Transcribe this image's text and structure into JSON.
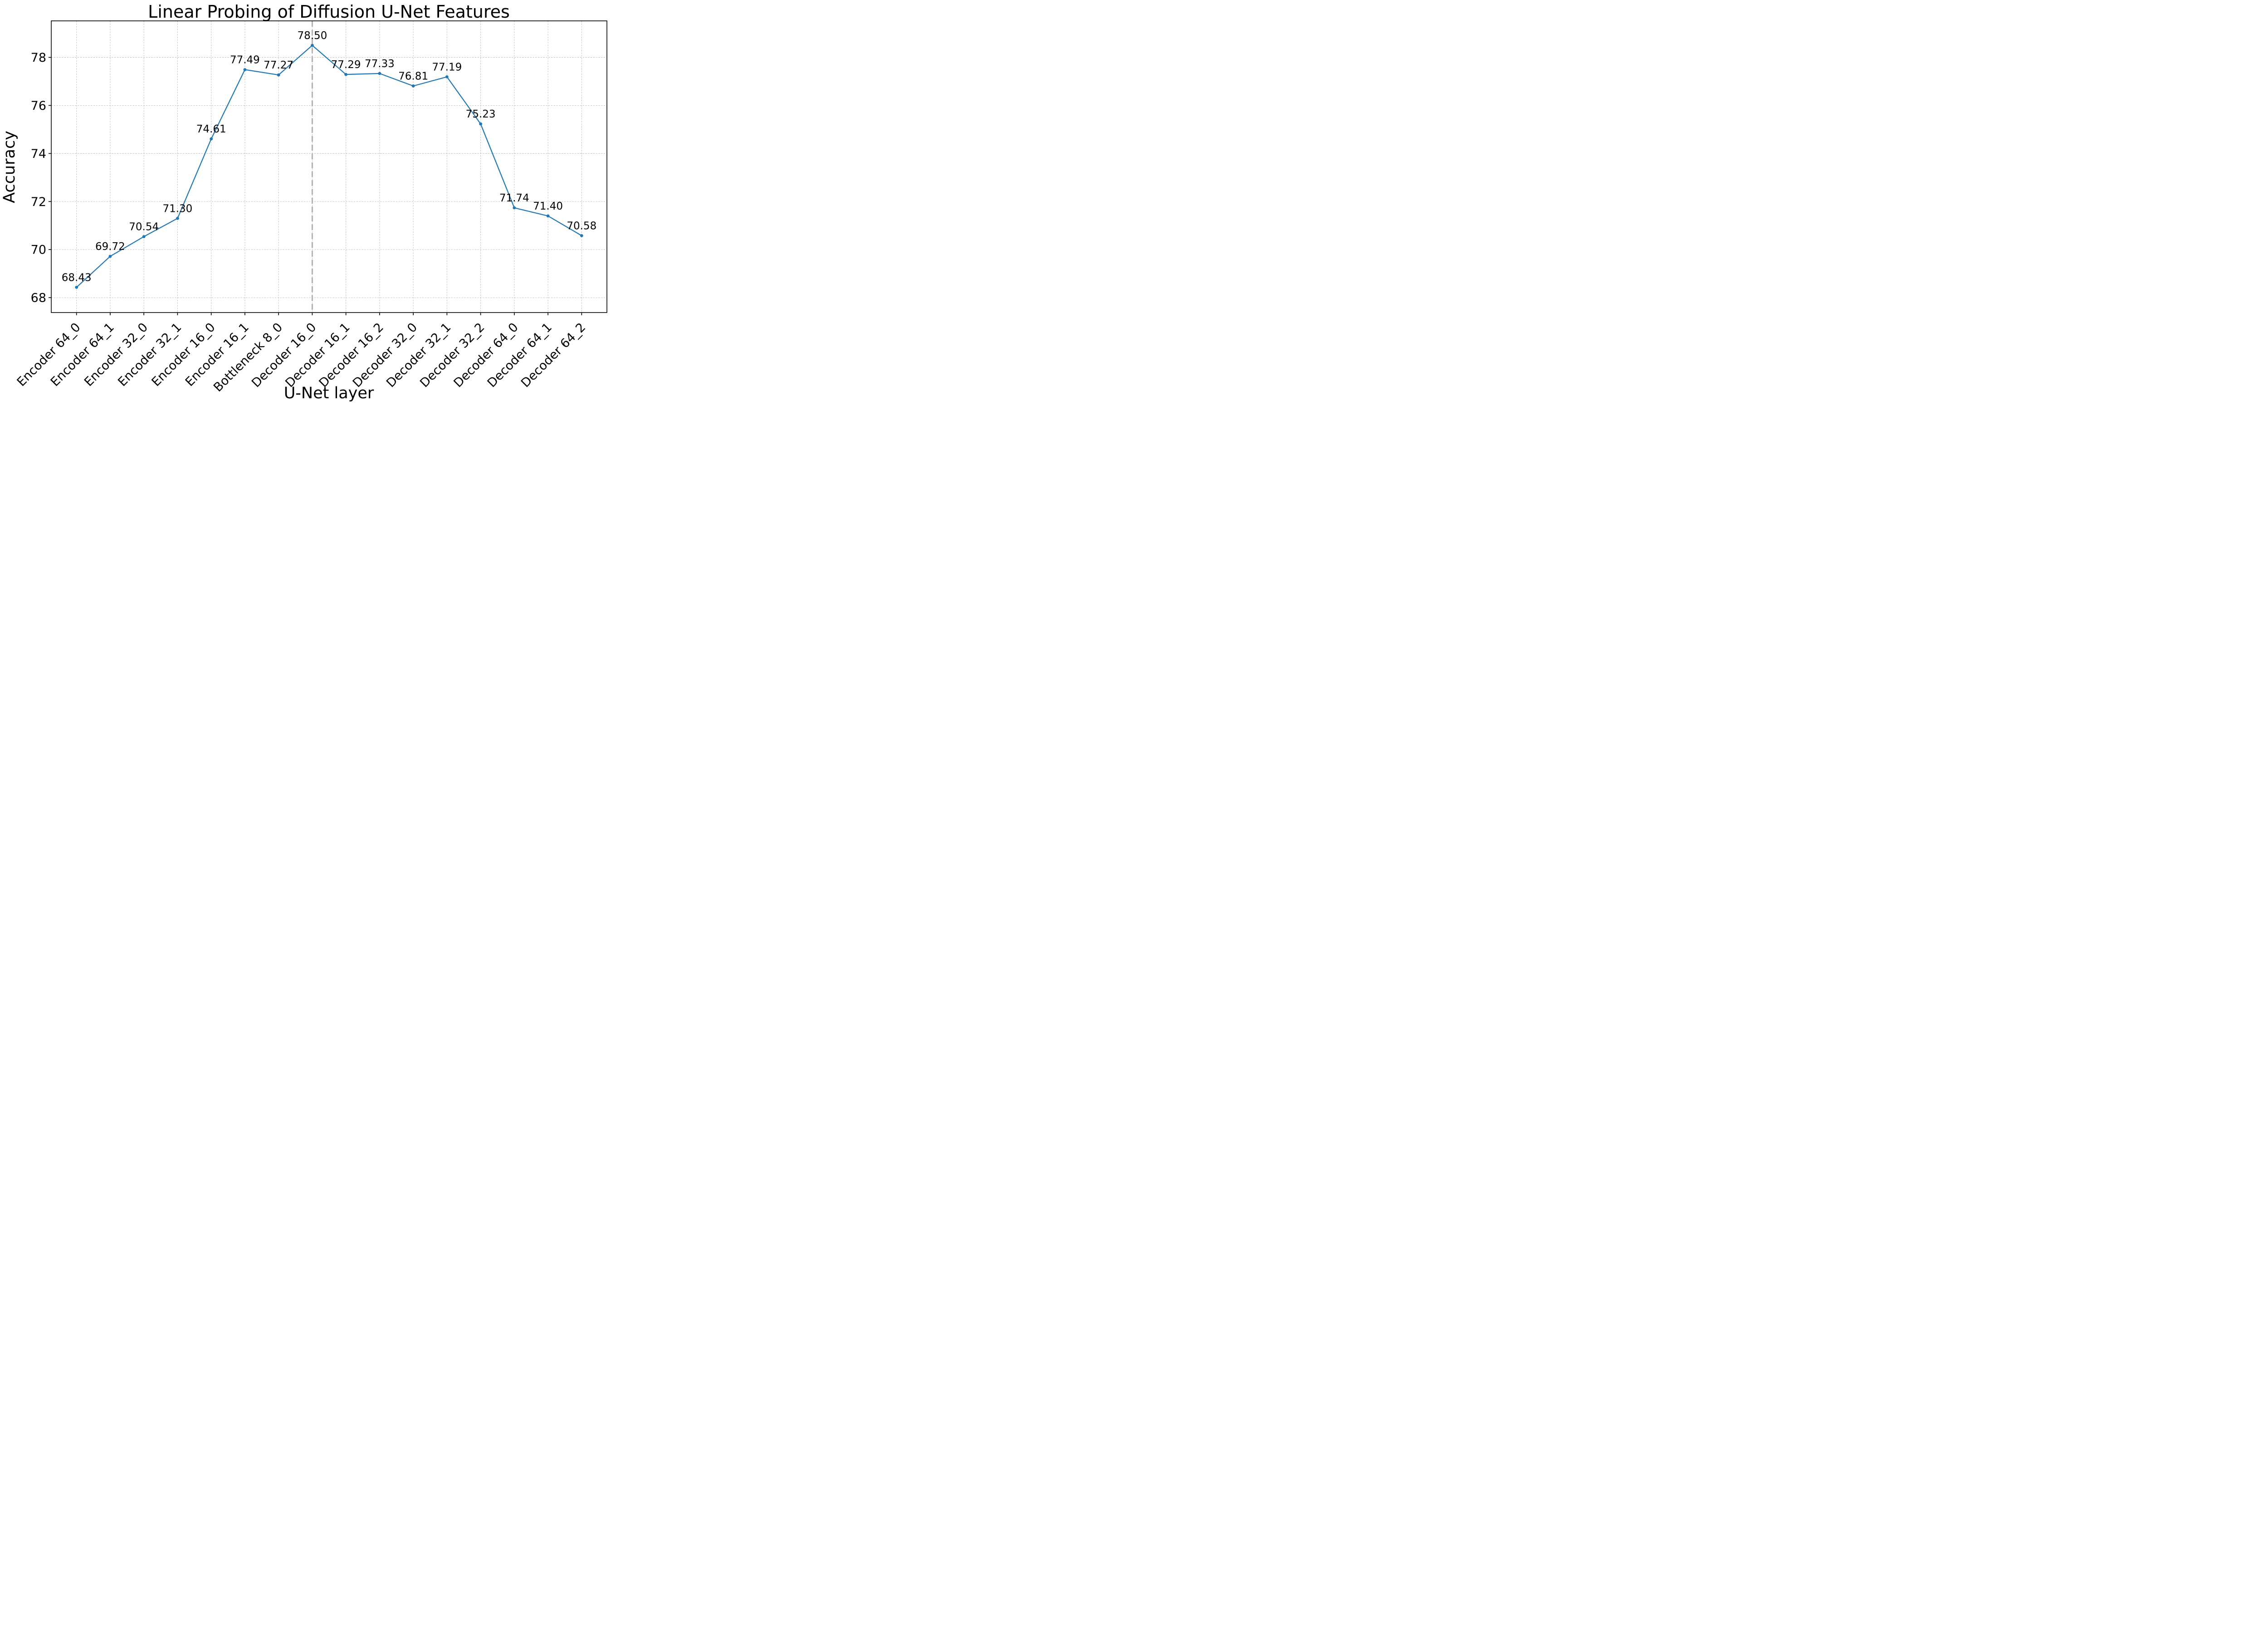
{
  "chart_data": {
    "type": "line",
    "title": "Linear Probing of Diffusion U-Net Features",
    "xlabel": "U-Net layer",
    "ylabel": "Accuracy",
    "categories": [
      "Encoder 64_0",
      "Encoder 64_1",
      "Encoder 32_0",
      "Encoder 32_1",
      "Encoder 16_0",
      "Encoder 16_1",
      "Bottleneck 8_0",
      "Decoder 16_0",
      "Decoder 16_1",
      "Decoder 16_2",
      "Decoder 32_0",
      "Decoder 32_1",
      "Decoder 32_2",
      "Decoder 64_0",
      "Decoder 64_1",
      "Decoder 64_2"
    ],
    "series": [
      {
        "name": "linear-probe-accuracy",
        "values": [
          68.43,
          69.72,
          70.54,
          71.3,
          74.61,
          77.49,
          77.27,
          78.5,
          77.29,
          77.33,
          76.81,
          77.19,
          75.23,
          71.74,
          71.4,
          70.58
        ],
        "point_labels": [
          "68.43",
          "69.72",
          "70.54",
          "71.30",
          "74.61",
          "77.49",
          "77.27",
          "78.50",
          "77.29",
          "77.33",
          "76.81",
          "77.19",
          "75.23",
          "71.74",
          "71.40",
          "70.58"
        ]
      }
    ],
    "yticks": [
      68,
      70,
      72,
      74,
      76,
      78
    ],
    "ytick_labels": [
      "68",
      "70",
      "72",
      "74",
      "76",
      "78"
    ],
    "ylim": [
      67.38,
      79.52
    ],
    "xlim": [
      -0.75,
      15.75
    ],
    "grid": true,
    "legend": false,
    "vline_index": 7,
    "vline_category": "Decoder 16_0",
    "xtick_rotation_deg": 45,
    "colors": {
      "line": "#1f77b4",
      "marker": "#1f77b4",
      "vline": "#b0b0b0",
      "grid": "#bcbcbc",
      "axis": "#000000",
      "text": "#000000",
      "background": "#ffffff"
    }
  }
}
